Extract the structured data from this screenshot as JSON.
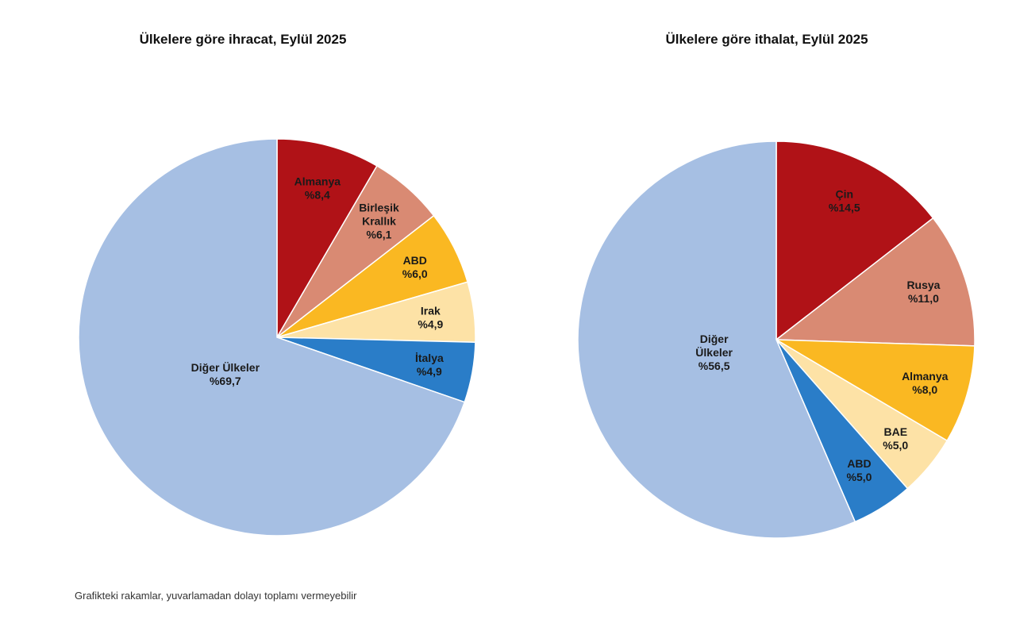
{
  "chart_data": [
    {
      "type": "pie",
      "title": "Ülkelere göre ihracat, Eylül 2025",
      "slices": [
        {
          "label": [
            "Almanya"
          ],
          "value": 8.4,
          "text": "%8,4",
          "color": "#b01217"
        },
        {
          "label": [
            "Birleşik",
            "Krallık"
          ],
          "value": 6.1,
          "text": "%6,1",
          "color": "#d98a73"
        },
        {
          "label": [
            "ABD"
          ],
          "value": 6.0,
          "text": "%6,0",
          "color": "#fab822"
        },
        {
          "label": [
            "Irak"
          ],
          "value": 4.9,
          "text": "%4,9",
          "color": "#fde2a6"
        },
        {
          "label": [
            "İtalya"
          ],
          "value": 4.9,
          "text": "%4,9",
          "color": "#2a7dc8"
        },
        {
          "label": [
            "Diğer Ülkeler"
          ],
          "value": 69.7,
          "text": "%69,7",
          "color": "#a6bfe3"
        }
      ]
    },
    {
      "type": "pie",
      "title": "Ülkelere göre ithalat, Eylül 2025",
      "slices": [
        {
          "label": [
            "Çin"
          ],
          "value": 14.5,
          "text": "%14,5",
          "color": "#b01217"
        },
        {
          "label": [
            "Rusya"
          ],
          "value": 11.0,
          "text": "%11,0",
          "color": "#d98a73"
        },
        {
          "label": [
            "Almanya"
          ],
          "value": 8.0,
          "text": "%8,0",
          "color": "#fab822"
        },
        {
          "label": [
            "BAE"
          ],
          "value": 5.0,
          "text": "%5,0",
          "color": "#fde2a6"
        },
        {
          "label": [
            "ABD"
          ],
          "value": 5.0,
          "text": "%5,0",
          "color": "#2a7dc8"
        },
        {
          "label": [
            "Diğer",
            "Ülkeler"
          ],
          "value": 56.5,
          "text": "%56,5",
          "color": "#a6bfe3"
        }
      ]
    }
  ],
  "footnote": "Grafikteki rakamlar, yuvarlamadan dolayı toplamı vermeyebilir"
}
